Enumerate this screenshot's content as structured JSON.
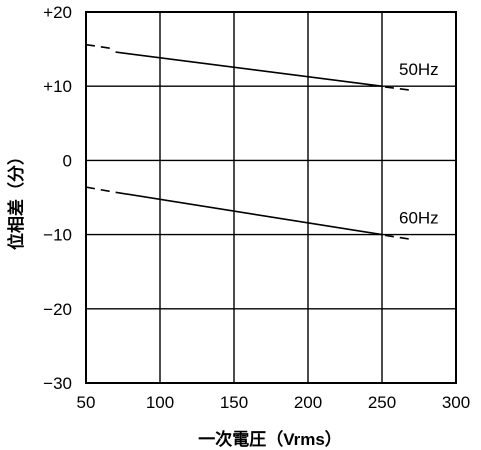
{
  "chart_data": {
    "type": "line",
    "title": "",
    "xlabel": "一次電圧（Vrms）",
    "ylabel": "位相差（分）",
    "xlim": [
      50,
      300
    ],
    "ylim": [
      -30,
      20
    ],
    "x_ticks": [
      50,
      100,
      150,
      200,
      250,
      300
    ],
    "x_tick_labels": [
      "50",
      "100",
      "150",
      "200",
      "250",
      "300"
    ],
    "y_ticks": [
      20,
      10,
      0,
      -10,
      -20,
      -30
    ],
    "y_tick_labels": [
      "+20",
      "+10",
      "0",
      "−10",
      "−20",
      "−30"
    ],
    "grid": true,
    "series": [
      {
        "name": "50Hz",
        "solid": {
          "x": [
            70,
            250
          ],
          "y": [
            14.6,
            10.0
          ]
        },
        "dashed_segments": [
          {
            "x": [
              50,
              67
            ],
            "y": [
              15.6,
              15.1
            ]
          },
          {
            "x": [
              252,
              272
            ],
            "y": [
              9.9,
              9.4
            ]
          }
        ]
      },
      {
        "name": "60Hz",
        "solid": {
          "x": [
            70,
            250
          ],
          "y": [
            -4.3,
            -10.0
          ]
        },
        "dashed_segments": [
          {
            "x": [
              50,
              67
            ],
            "y": [
              -3.6,
              -4.2
            ]
          },
          {
            "x": [
              252,
              272
            ],
            "y": [
              -10.1,
              -10.7
            ]
          }
        ]
      }
    ]
  }
}
